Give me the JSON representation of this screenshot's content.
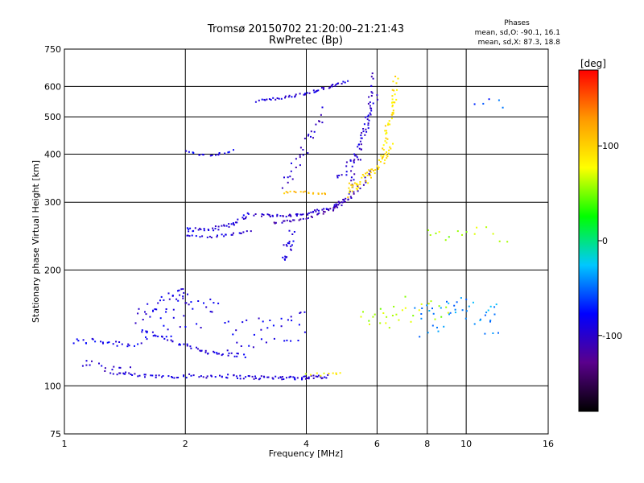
{
  "chart_data": {
    "type": "scatter",
    "title": "Tromsø 20150702 21:20:00–21:21:43",
    "subtitle": "RwPretec (Bp)",
    "xlabel": "Frequency [MHz]",
    "ylabel": "Stationary phase Virtual Height [km]",
    "x_scale": "log",
    "y_scale": "log",
    "xlim": [
      1,
      16
    ],
    "ylim": [
      75,
      750
    ],
    "x_ticks": [
      1,
      2,
      4,
      6,
      8,
      10,
      16
    ],
    "x_tick_labels": [
      "1",
      "2",
      "4",
      "6",
      "8",
      "10",
      "16"
    ],
    "y_ticks": [
      75,
      100,
      200,
      300,
      400,
      500,
      600,
      750
    ],
    "y_tick_labels": [
      "75",
      "100",
      "200",
      "300",
      "400",
      "500",
      "600",
      "750"
    ],
    "grid": true,
    "stats": {
      "heading": "Phases",
      "line_o": "mean, sd,O: -90.1, 16.1",
      "line_x": "mean, sd,X:  87.3, 18.8"
    },
    "colorbar": {
      "unit": "[deg]",
      "range": [
        -180,
        180
      ],
      "ticks": [
        100,
        0,
        -100
      ],
      "tick_labels": [
        "100",
        "0",
        "-100"
      ],
      "colors": [
        "#000000",
        "#5a008c",
        "#0000ff",
        "#00c8ff",
        "#00ff00",
        "#ffff00",
        "#ff9900",
        "#ff0000"
      ]
    },
    "traces": [
      {
        "x": [
          1.05,
          1.2,
          1.35,
          1.55
        ],
        "y": [
          130,
          131,
          129,
          128
        ],
        "phase": -85,
        "n": 25,
        "jitter": 2.5
      },
      {
        "x": [
          1.3,
          1.6,
          2.0,
          2.5,
          3.0,
          3.5,
          4.0,
          4.5
        ],
        "y": [
          108,
          106,
          106,
          106,
          105,
          105,
          105,
          106
        ],
        "phase": -95,
        "n": 110,
        "jitter": 1.2
      },
      {
        "x": [
          1.55,
          1.8,
          2.1,
          2.4,
          2.8
        ],
        "y": [
          140,
          132,
          125,
          121,
          120
        ],
        "phase": -90,
        "n": 50,
        "jitter": 1.5
      },
      {
        "x": [
          1.5,
          1.7,
          1.9,
          2.0
        ],
        "y": [
          150,
          160,
          170,
          180
        ],
        "phase": -95,
        "n": 30,
        "jitter": 8
      },
      {
        "x": [
          1.1,
          1.25,
          1.45
        ],
        "y": [
          115,
          112,
          110
        ],
        "phase": -100,
        "n": 15,
        "jitter": 3
      },
      {
        "x": [
          2.0,
          2.3,
          2.6,
          2.9
        ],
        "y": [
          255,
          255,
          262,
          280
        ],
        "phase": -90,
        "n": 40,
        "jitter": 3
      },
      {
        "x": [
          2.0,
          2.3,
          2.6,
          2.9
        ],
        "y": [
          246,
          244,
          247,
          252
        ],
        "phase": -95,
        "n": 25,
        "jitter": 2
      },
      {
        "x": [
          3.0,
          3.5,
          4.0,
          4.6,
          5.0
        ],
        "y": [
          278,
          276,
          280,
          290,
          305
        ],
        "phase": -100,
        "n": 60,
        "jitter": 2
      },
      {
        "x": [
          3.3,
          3.9,
          4.6,
          5.2,
          5.8
        ],
        "y": [
          265,
          270,
          285,
          310,
          360
        ],
        "phase": -110,
        "n": 50,
        "jitter": 2
      },
      {
        "x": [
          5.1,
          5.4,
          5.7,
          5.9
        ],
        "y": [
          320,
          400,
          500,
          640
        ],
        "phase": -100,
        "n": 45,
        "jitter": 10
      },
      {
        "x": [
          4.8,
          5.2,
          5.6,
          6.0
        ],
        "y": [
          340,
          390,
          460,
          560
        ],
        "phase": -95,
        "n": 30,
        "jitter": 10
      },
      {
        "x": [
          3.0,
          3.5,
          4.0,
          4.5,
          5.0
        ],
        "y": [
          550,
          560,
          575,
          595,
          620
        ],
        "phase": -95,
        "n": 50,
        "jitter": 4
      },
      {
        "x": [
          3.5,
          3.8,
          4.1,
          4.4
        ],
        "y": [
          330,
          380,
          440,
          520
        ],
        "phase": -100,
        "n": 30,
        "jitter": 20
      },
      {
        "x": [
          2.0,
          2.3,
          2.6
        ],
        "y": [
          405,
          395,
          410
        ],
        "phase": -85,
        "n": 18,
        "jitter": 3
      },
      {
        "x": [
          5.1,
          5.5,
          6.0,
          6.5
        ],
        "y": [
          320,
          340,
          370,
          420
        ],
        "phase": 95,
        "n": 55,
        "jitter": 12
      },
      {
        "x": [
          6.2,
          6.5,
          6.7
        ],
        "y": [
          400,
          500,
          630
        ],
        "phase": 90,
        "n": 45,
        "jitter": 25
      },
      {
        "x": [
          3.5,
          4.0,
          4.5
        ],
        "y": [
          318,
          318,
          316
        ],
        "phase": 110,
        "n": 18,
        "jitter": 2
      },
      {
        "x": [
          4.0,
          4.5,
          4.9
        ],
        "y": [
          107,
          107,
          108
        ],
        "phase": 80,
        "n": 10,
        "jitter": 1
      },
      {
        "x": [
          2.5,
          3.0,
          3.5,
          4.0
        ],
        "y": [
          135,
          138,
          140,
          145
        ],
        "phase": -90,
        "n": 35,
        "jitter": 12
      },
      {
        "x": [
          3.5,
          3.6,
          3.7
        ],
        "y": [
          215,
          230,
          250
        ],
        "phase": -90,
        "n": 20,
        "jitter": 10
      },
      {
        "x": [
          1.6,
          2.0,
          2.4
        ],
        "y": [
          145,
          150,
          155
        ],
        "phase": -90,
        "n": 30,
        "jitter": 15
      },
      {
        "x": [
          5.5,
          6.0,
          6.5,
          7.0,
          8.0,
          9.0
        ],
        "y": [
          150,
          155,
          150,
          160,
          155,
          150
        ],
        "phase": 60,
        "n": 30,
        "jitter": 12
      },
      {
        "x": [
          7.5,
          8.5,
          9.5,
          11.0,
          12.0
        ],
        "y": [
          145,
          150,
          160,
          145,
          150
        ],
        "phase": -40,
        "n": 45,
        "jitter": 15
      },
      {
        "x": [
          8.0,
          9.0,
          10.5,
          12.5
        ],
        "y": [
          250,
          240,
          255,
          245
        ],
        "phase": 60,
        "n": 15,
        "jitter": 10
      },
      {
        "x": [
          10.5,
          12.5
        ],
        "y": [
          520,
          540
        ],
        "phase": -60,
        "n": 5,
        "jitter": 30
      }
    ]
  }
}
